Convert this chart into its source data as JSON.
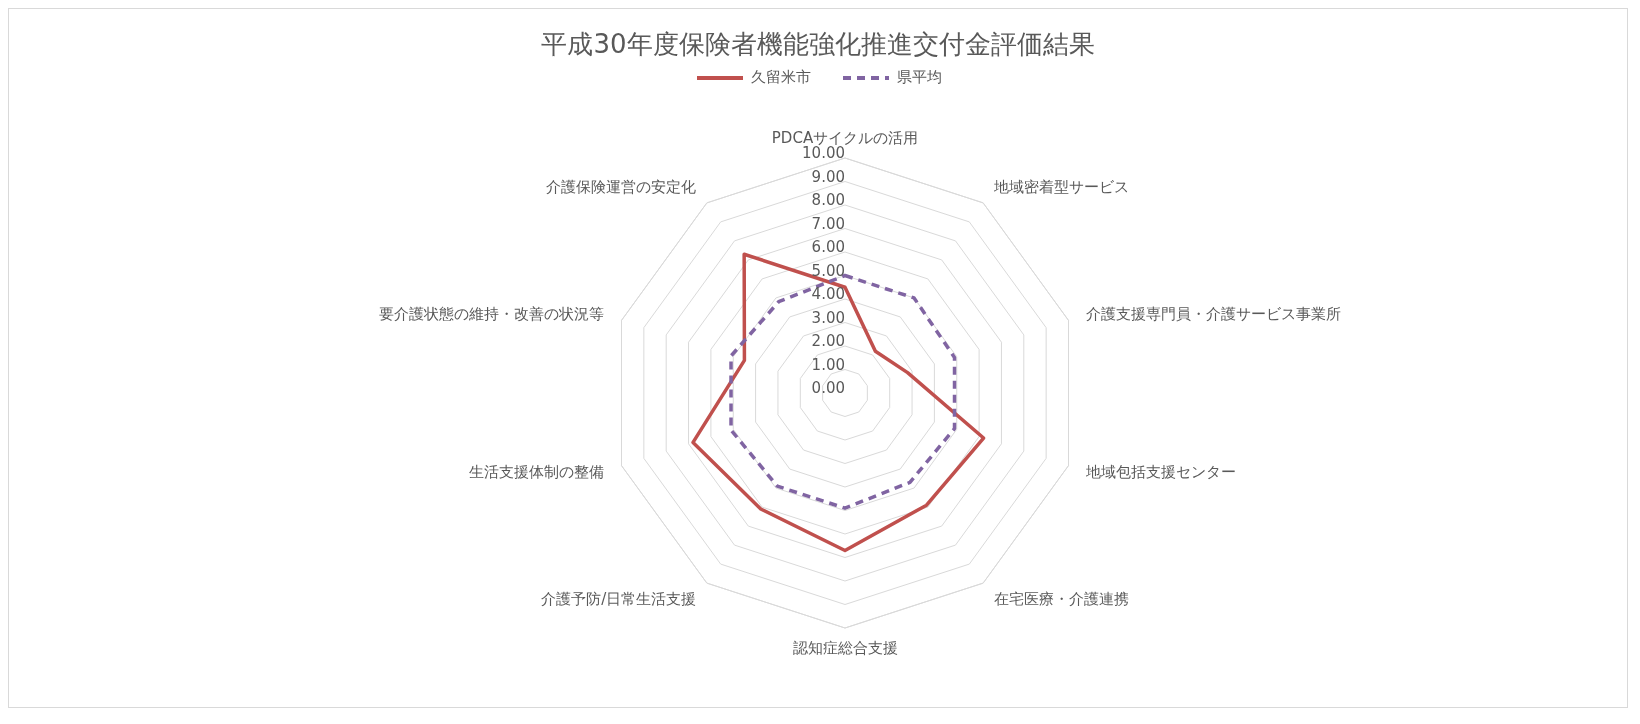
{
  "chart_data": {
    "type": "radar",
    "title": "平成30年度保険者機能強化推進交付金評価結果",
    "categories": [
      "PDCAサイクルの活用",
      "地域密着型サービス",
      "介護支援専門員・介護サービス事業所",
      "地域包括支援センター",
      "在宅医療・介護連携",
      "認知症総合支援",
      "介護予防/日常生活支援",
      "生活支援体制の整備",
      "要介護状態の維持・改善の状況等",
      "介護保険運営の安定化"
    ],
    "series": [
      {
        "name": "久留米市",
        "color": "#c0504d",
        "line_style": "solid",
        "values": [
          4.5,
          2.2,
          2.8,
          6.2,
          5.9,
          6.7,
          6.1,
          6.8,
          4.5,
          7.3
        ]
      },
      {
        "name": "県平均",
        "color": "#8064a2",
        "line_style": "dashed",
        "values": [
          5.0,
          5.0,
          4.9,
          4.9,
          4.7,
          4.9,
          4.9,
          5.1,
          5.1,
          4.8
        ]
      }
    ],
    "ylim": [
      0,
      10
    ],
    "yticks": [
      {
        "value": 0,
        "label": "0.00"
      },
      {
        "value": 1,
        "label": "1.00"
      },
      {
        "value": 2,
        "label": "2.00"
      },
      {
        "value": 3,
        "label": "3.00"
      },
      {
        "value": 4,
        "label": "4.00"
      },
      {
        "value": 5,
        "label": "5.00"
      },
      {
        "value": 6,
        "label": "6.00"
      },
      {
        "value": 7,
        "label": "7.00"
      },
      {
        "value": 8,
        "label": "8.00"
      },
      {
        "value": 9,
        "label": "9.00"
      },
      {
        "value": 10,
        "label": "10.00"
      }
    ],
    "grid": true,
    "legend": "top",
    "marker": "none"
  }
}
